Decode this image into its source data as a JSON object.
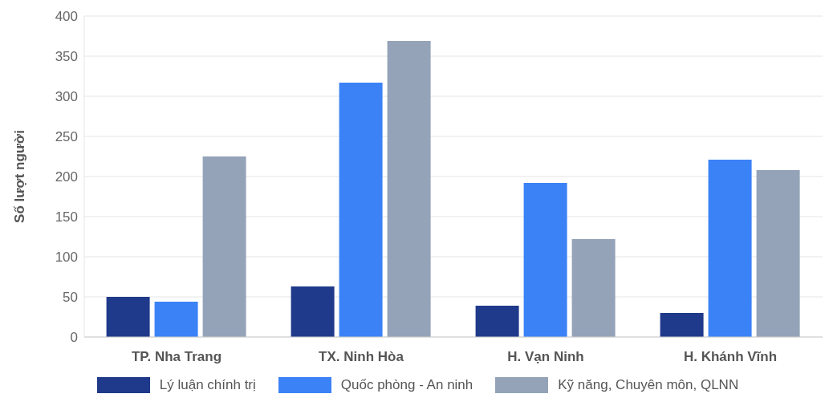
{
  "chart_data": {
    "type": "bar",
    "ylabel": "Số lượt người",
    "categories": [
      "TP. Nha Trang",
      "TX. Ninh Hòa",
      "H. Vạn Ninh",
      "H. Khánh Vĩnh"
    ],
    "series": [
      {
        "name": "Lý luận chính trị",
        "color": "#1f3a8a",
        "values": [
          50,
          63,
          39,
          30
        ]
      },
      {
        "name": "Quốc phòng - An ninh",
        "color": "#3b82f6",
        "values": [
          44,
          317,
          192,
          221
        ]
      },
      {
        "name": "Kỹ năng, Chuyên môn, QLNN",
        "color": "#94a3b8",
        "values": [
          225,
          369,
          122,
          208
        ]
      }
    ],
    "ylim": [
      0,
      400
    ],
    "yticks": [
      0,
      50,
      100,
      150,
      200,
      250,
      300,
      350,
      400
    ],
    "grid": "y",
    "legend": "bottom"
  }
}
